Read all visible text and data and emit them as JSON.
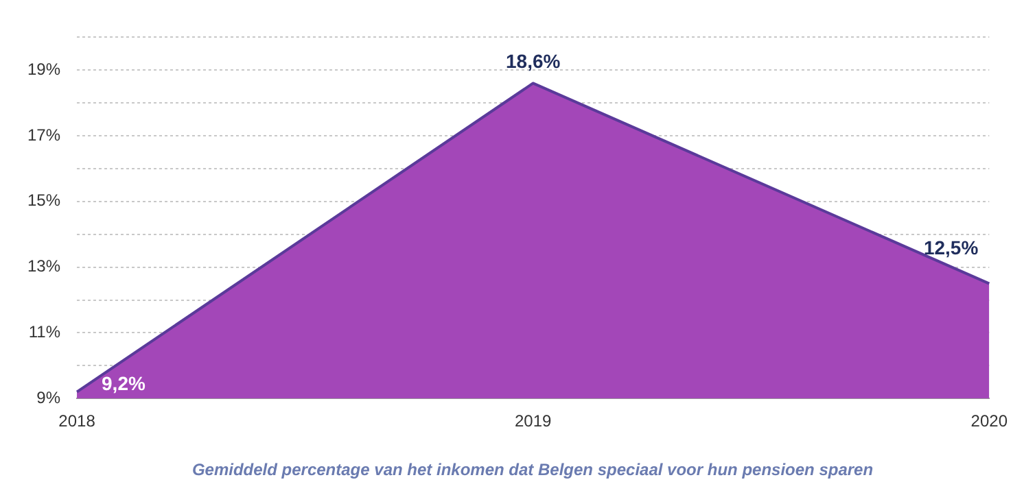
{
  "chart_data": {
    "type": "area",
    "categories": [
      "2018",
      "2019",
      "2020"
    ],
    "series": [
      {
        "color": "#a347b8",
        "values": [
          9.2,
          18.6,
          12.5
        ],
        "value_labels": [
          "9,2%",
          "18,6%",
          "12,5%"
        ]
      }
    ],
    "ylim": [
      9,
      20
    ],
    "yticks": [
      {
        "value": 9,
        "label": "9%"
      },
      {
        "value": 10,
        "label": null
      },
      {
        "value": 11,
        "label": "11%"
      },
      {
        "value": 12,
        "label": null
      },
      {
        "value": 13,
        "label": "13%"
      },
      {
        "value": 14,
        "label": null
      },
      {
        "value": 15,
        "label": "15%"
      },
      {
        "value": 16,
        "label": null
      },
      {
        "value": 17,
        "label": "17%"
      },
      {
        "value": 18,
        "label": null
      },
      {
        "value": 19,
        "label": "19%"
      },
      {
        "value": 20,
        "label": null
      }
    ],
    "grid": "y",
    "legend": false,
    "annotations": [
      "Gemiddeld percentage van het inkomen dat Belgen speciaal voor hun pensioen sparen"
    ]
  }
}
